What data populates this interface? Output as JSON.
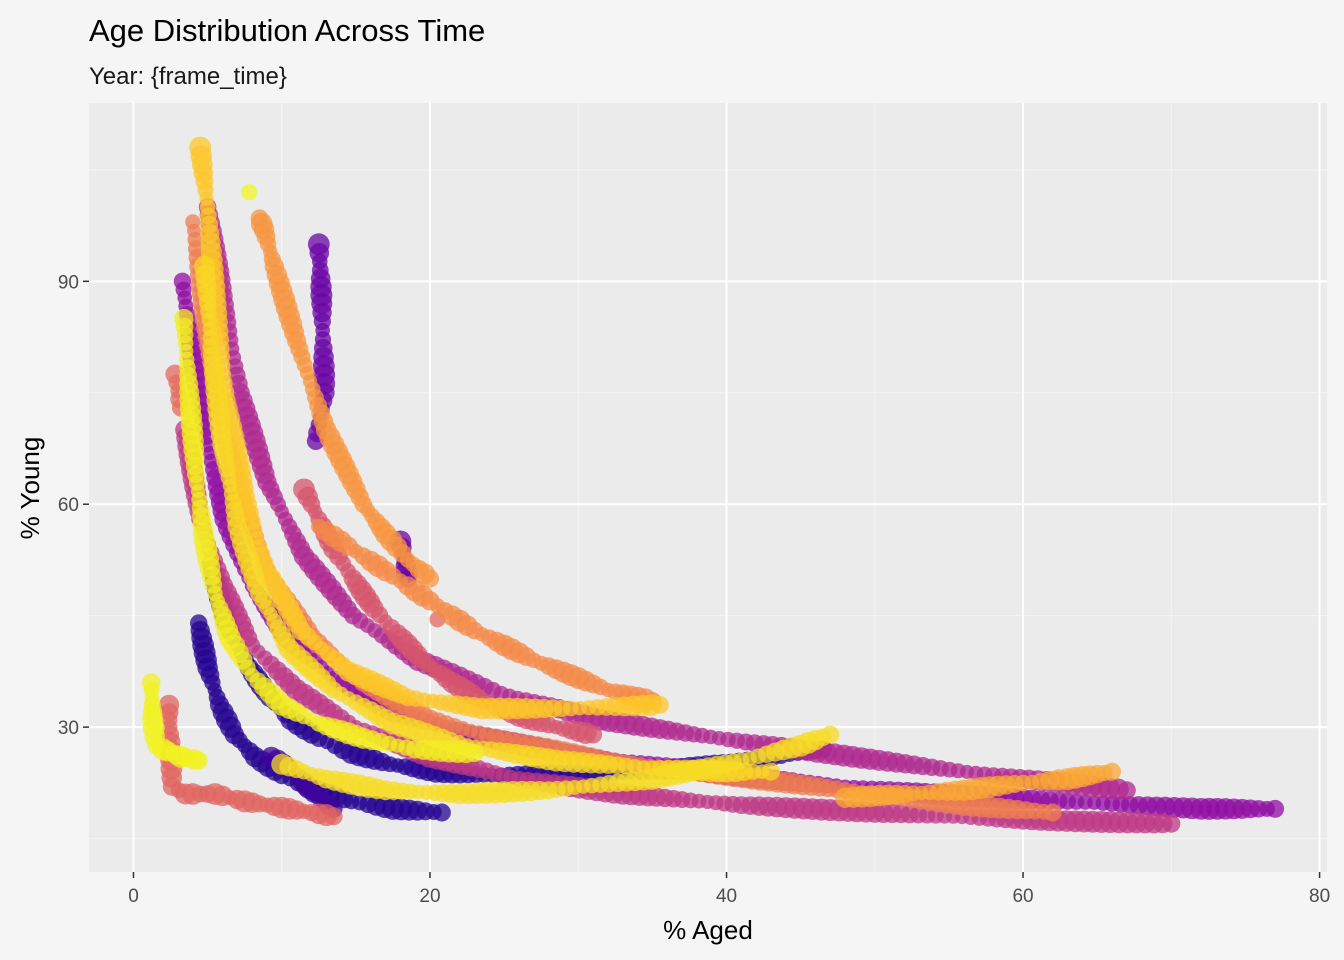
{
  "chart_data": {
    "type": "scatter",
    "title": "Age Distribution Across Time",
    "subtitle": "Year: {frame_time}",
    "xlabel": "% Aged",
    "ylabel": "% Young",
    "xlim": [
      -3,
      80.5
    ],
    "ylim": [
      10.5,
      114
    ],
    "xticks": [
      0,
      20,
      40,
      60,
      80
    ],
    "yticks": [
      30,
      60,
      90
    ],
    "x_tick_labels": [
      "0",
      "20",
      "40",
      "60",
      "80"
    ],
    "y_tick_labels": [
      "30",
      "60",
      "90"
    ],
    "grid": true,
    "legend": "none",
    "color_scale": "plasma",
    "colors": {
      "panel_background": "#ebebeb",
      "page_background": "#f5f5f5",
      "grid_major": "#ffffff",
      "grid_minor": "#f4f4f4",
      "palette": [
        "#0d0887",
        "#5302a3",
        "#8b0aa5",
        "#b83289",
        "#db5c68",
        "#f48849",
        "#febd2a",
        "#f0f921"
      ]
    },
    "series": [
      {
        "color_value": 0.05,
        "x": [
          5.2,
          6.3,
          7.8,
          9.2,
          10.6,
          12.5,
          14.7,
          17.3,
          20.4,
          24.2,
          28.8,
          34.2,
          40.3,
          46.5
        ],
        "y": [
          52,
          44,
          38,
          34,
          31,
          28.5,
          26.5,
          25,
          24,
          23.5,
          23.5,
          24,
          25,
          27
        ]
      },
      {
        "color_value": 0.05,
        "x": [
          4.4,
          5,
          5.8,
          6.8,
          8.2,
          10,
          12.2,
          14.7,
          17.5,
          20.8
        ],
        "y": [
          44,
          38,
          33,
          29,
          26,
          23.5,
          21.5,
          20,
          19,
          18.5
        ]
      },
      {
        "color_value": 0.1,
        "x": [
          9.3,
          10.5,
          11.5,
          12.5,
          13.5
        ],
        "y": [
          26,
          24.5,
          22.5,
          20.5,
          19
        ]
      },
      {
        "color_value": 0.2,
        "x": [
          12.5,
          12.6,
          12.7,
          12.8,
          12.9,
          12.3
        ],
        "y": [
          95,
          91.5,
          87,
          81,
          75,
          68.5
        ]
      },
      {
        "color_value": 0.2,
        "x": [
          18,
          18.3,
          18.5
        ],
        "y": [
          55,
          52.5,
          50
        ]
      },
      {
        "color_value": 0.3,
        "x": [
          3.3,
          4,
          5,
          6.2,
          8,
          10.4,
          13.6,
          17.6,
          22.8,
          29,
          36.5,
          45,
          54,
          63,
          72,
          77
        ],
        "y": [
          90,
          80,
          68,
          58,
          49,
          42,
          36.5,
          32,
          29,
          26.5,
          24.5,
          22.5,
          21,
          20,
          19,
          19
        ]
      },
      {
        "color_value": 0.4,
        "x": [
          5,
          6,
          7.2,
          9,
          11.5,
          14.8,
          19.2,
          24.8,
          31.5,
          39.5,
          48.5,
          58,
          67
        ],
        "y": [
          100,
          88,
          75,
          63,
          53,
          45,
          39,
          34.5,
          31,
          28.5,
          26,
          23.5,
          21.5
        ]
      },
      {
        "color_value": 0.45,
        "x": [
          3.5,
          4.5,
          6,
          8,
          11,
          15,
          20,
          26,
          33,
          41,
          50,
          60,
          70
        ],
        "y": [
          70,
          58,
          49,
          41,
          35,
          30,
          26,
          23,
          21,
          19.5,
          18.5,
          17.5,
          17
        ]
      },
      {
        "color_value": 0.55,
        "x": [
          11.5,
          12.5,
          13.5,
          14.8,
          16.2,
          17.8,
          19.5,
          21.5,
          23.6,
          26,
          28.5,
          31
        ],
        "y": [
          62,
          58,
          54,
          50,
          46,
          42.5,
          39,
          36,
          33.5,
          31.5,
          30,
          29
        ]
      },
      {
        "color_value": 0.6,
        "x": [
          2.4,
          2.5,
          2.6,
          3.5,
          4.5,
          5.5,
          6.5,
          7.5,
          9,
          10.5,
          12,
          13.5
        ],
        "y": [
          33,
          28,
          22,
          21,
          21,
          21,
          20.5,
          20,
          19.5,
          19,
          18.5,
          18
        ]
      },
      {
        "color_value": 0.62,
        "x": [
          2.8,
          3.2
        ],
        "y": [
          77.5,
          73
        ]
      },
      {
        "color_value": 0.62,
        "x": [
          20.5
        ],
        "y": [
          44.5
        ]
      },
      {
        "color_value": 0.68,
        "x": [
          4,
          4.8,
          5.8,
          7.3,
          9.3,
          12,
          15.5,
          20,
          25.5,
          32,
          40,
          48,
          56,
          62
        ],
        "y": [
          98,
          86,
          72,
          60,
          50,
          42,
          36,
          31,
          28,
          25.5,
          23.5,
          21.5,
          19.5,
          18.5
        ]
      },
      {
        "color_value": 0.72,
        "x": [
          12.5,
          14,
          15.5,
          17,
          18.5,
          20,
          21.5,
          23,
          25,
          27,
          29.5,
          32,
          35
        ],
        "y": [
          57,
          55,
          53,
          51,
          49,
          47,
          45,
          43,
          41,
          39,
          37,
          35,
          33.5
        ]
      },
      {
        "color_value": 0.75,
        "x": [
          8.5,
          8.8,
          9.5,
          11,
          13,
          15.5,
          17,
          18.5,
          20
        ],
        "y": [
          98.5,
          97,
          92,
          82,
          70,
          60,
          56,
          52.5,
          50
        ]
      },
      {
        "color_value": 0.8,
        "x": [
          48,
          52,
          56,
          60,
          63,
          66
        ],
        "y": [
          20.5,
          21,
          21.5,
          22.5,
          23,
          24
        ]
      },
      {
        "color_value": 0.88,
        "x": [
          4.5,
          5,
          5.5,
          6.3,
          7.5,
          9,
          11.3,
          14.5,
          18.5,
          23.5,
          29.5,
          35.5
        ],
        "y": [
          108,
          100,
          88,
          74,
          61,
          51,
          43,
          37.5,
          34,
          32.5,
          32.5,
          33
        ]
      },
      {
        "color_value": 0.92,
        "x": [
          4.8,
          5.3,
          6,
          7,
          8.5,
          10.5,
          13.5,
          17.5,
          22.5,
          28.5,
          35,
          40,
          43
        ],
        "y": [
          92,
          80,
          68,
          57,
          48,
          40.5,
          35,
          30.5,
          27.5,
          25.5,
          24.5,
          24,
          24
        ]
      },
      {
        "color_value": 0.93,
        "x": [
          10,
          13,
          17,
          22,
          28,
          35,
          41,
          45,
          47
        ],
        "y": [
          25,
          23,
          21.5,
          21,
          21.5,
          23,
          25.5,
          27.5,
          29
        ]
      },
      {
        "color_value": 0.97,
        "x": [
          3.4,
          3.8,
          4.2,
          4.8,
          5.5,
          6.5,
          8,
          10,
          12.5,
          15.5,
          19,
          23
        ],
        "y": [
          85,
          74,
          64,
          55,
          48,
          42,
          37,
          33,
          30.5,
          28.5,
          27,
          26.5
        ]
      },
      {
        "color_value": 0.98,
        "x": [
          1.2,
          1.3,
          1.5,
          2,
          2.6,
          3.2,
          3.8,
          4.4
        ],
        "y": [
          36,
          31,
          27.5,
          27,
          26.5,
          26,
          25.8,
          25.5
        ]
      },
      {
        "color_value": 0.99,
        "x": [
          7.8
        ],
        "y": [
          102
        ]
      }
    ]
  }
}
